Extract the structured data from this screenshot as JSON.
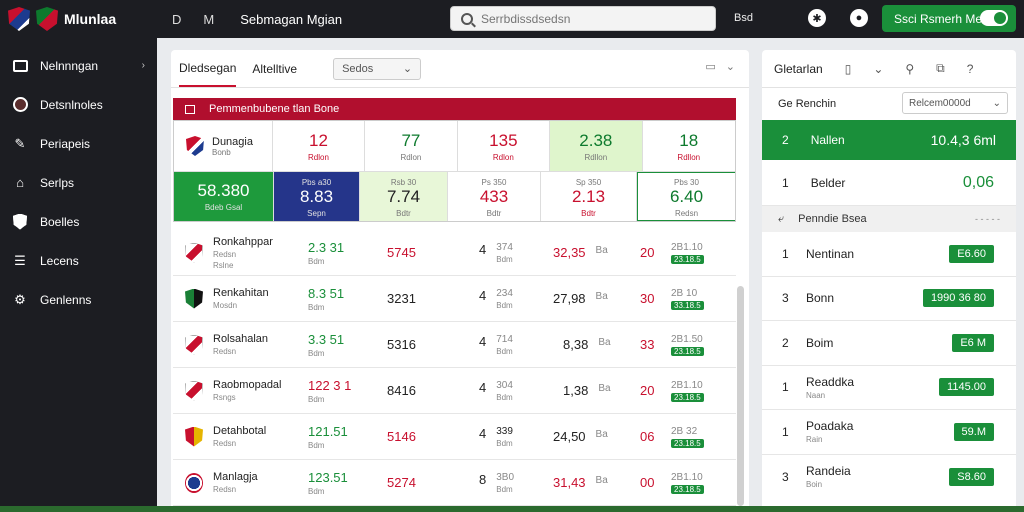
{
  "header": {
    "app_name": "Mlunlaa",
    "icons": [
      "D",
      "M"
    ],
    "title": "Sebmagan Mgian",
    "search_placeholder": "Serrbdissdsedsn",
    "link": "Bsd",
    "toggle_label": "Ssci Rsmerh Meet"
  },
  "sidebar": {
    "items": [
      {
        "label": "Nelnnngan",
        "icon": "box-icon",
        "chevron": "›"
      },
      {
        "label": "Detsnlnoles",
        "icon": "crest-icon"
      },
      {
        "label": "Periapeis",
        "icon": "pen-icon"
      },
      {
        "label": "Serlps",
        "icon": "home-icon"
      },
      {
        "label": "Boelles",
        "icon": "shield-icon"
      },
      {
        "label": "Lecens",
        "icon": "list-icon"
      },
      {
        "label": "Genlenns",
        "icon": "gear-icon"
      }
    ]
  },
  "center": {
    "tabs": [
      "Dledsegan",
      "Altelltive"
    ],
    "select": "Sedos",
    "banner": "Pemmenbubene tlan Bone",
    "feature": {
      "team": "Dunagia",
      "team_sub": "Bonb",
      "top": [
        {
          "val": "12",
          "sub": "Rdlon"
        },
        {
          "val": "77",
          "sub": "Rdlon"
        },
        {
          "val": "135",
          "sub": "Rdlon"
        },
        {
          "val": "2.38",
          "sub": "Rdllon"
        },
        {
          "val": "18",
          "sub": "Rdllon"
        }
      ],
      "bottom": [
        {
          "val": "58.380",
          "sub": "Bdeb Gsal"
        },
        {
          "val": "8.83",
          "sub": "Sepn",
          "head": "Pbs a30"
        },
        {
          "val": "7.74",
          "sub": "Bdtr",
          "head": "Rsb 30"
        },
        {
          "val": "433",
          "sub": "Bdtr",
          "head": "Ps 350"
        },
        {
          "val": "2.13",
          "sub": "Bdtr",
          "head": "Sp 350"
        },
        {
          "val": "6.40",
          "sub": "Redsn",
          "head": "Pbs 30"
        }
      ]
    },
    "rows": [
      {
        "team": "Ronkahppar",
        "sub1": "Redsn",
        "sub2": "Rslne",
        "c1": "2.3 31",
        "c1s": "Bdm",
        "c2": "5745",
        "c3": "4",
        "c3b": "374",
        "c3s": "Bdm",
        "c4": "32,35",
        "c4b": "Ba",
        "c5": "20",
        "c6": "2B1.10",
        "c6p": "23.18.5"
      },
      {
        "team": "Renkahitan",
        "sub1": "Mosdn",
        "sub2": "",
        "c1": "8.3 51",
        "c1s": "Bdm",
        "c2": "3231",
        "c3": "4",
        "c3b": "234",
        "c3s": "Bdm",
        "c4": "27,98",
        "c4b": "Ba",
        "c5": "30",
        "c6": "2B 10",
        "c6p": "33.18.5"
      },
      {
        "team": "Rolsahalan",
        "sub1": "Redsn",
        "sub2": "",
        "c1": "3.3 51",
        "c1s": "Bdm",
        "c2": "5316",
        "c3": "4",
        "c3b": "714",
        "c3s": "Bdm",
        "c4": "8,38",
        "c4b": "Ba",
        "c5": "33",
        "c6": "2B1.50",
        "c6p": "23.18.5"
      },
      {
        "team": "Raobmopadal",
        "sub1": "Rsngs",
        "sub2": "",
        "c1": "122 3 1",
        "c1s": "Bdm",
        "c2": "8416",
        "c3": "4",
        "c3b": "304",
        "c3s": "Bdm",
        "c4": "1,38",
        "c4b": "Ba",
        "c5": "20",
        "c6": "2B1.10",
        "c6p": "23.18.5"
      },
      {
        "team": "Detahbotal",
        "sub1": "Redsn",
        "sub2": "",
        "c1": "121.51",
        "c1s": "Bdm",
        "c2": "5146",
        "c3": "4",
        "c3b": "339",
        "c3s": "Bdm",
        "c4": "24,50",
        "c4b": "Ba",
        "c5": "06",
        "c6": "2B 32",
        "c6p": "23.18.5"
      },
      {
        "team": "Manlagja",
        "sub1": "Redsn",
        "sub2": "",
        "c1": "123.51",
        "c1s": "Bdm",
        "c2": "5274",
        "c3": "8",
        "c3b": "3B0",
        "c3s": "Bdm",
        "c4": "31,43",
        "c4b": "Ba",
        "c5": "00",
        "c6": "2B1.10",
        "c6p": "23.18.5"
      }
    ]
  },
  "right": {
    "tabs": [
      "Gletarlan"
    ],
    "selector_label": "Ge Renchin",
    "selector_value": "Relcem0000d",
    "highlight": {
      "num": "2",
      "label": "Nallen",
      "value": "10.4,3 6ml"
    },
    "row1": {
      "num": "1",
      "label": "Belder",
      "value": "0,06"
    },
    "section": "Penndie Bsea",
    "section_dots": "- - - - -",
    "list": [
      {
        "num": "1",
        "label": "Nentinan",
        "sub": "",
        "badge": "E6.60"
      },
      {
        "num": "3",
        "label": "Bonn",
        "sub": "",
        "badge": "1990 36 80"
      },
      {
        "num": "2",
        "label": "Boim",
        "sub": "",
        "badge": "E6 M"
      },
      {
        "num": "1",
        "label": "Readdka",
        "sub": "Naan",
        "badge": "1145.00"
      },
      {
        "num": "1",
        "label": "Poadaka",
        "sub": "Rain",
        "badge": "59.M"
      },
      {
        "num": "3",
        "label": "Randeia",
        "sub": "Boin",
        "badge": "S8.60"
      }
    ]
  },
  "colors": {
    "header_bg": "#1c1d22",
    "accent_green": "#1a8f3a",
    "accent_red": "#c8102e",
    "navy": "#25358a"
  }
}
